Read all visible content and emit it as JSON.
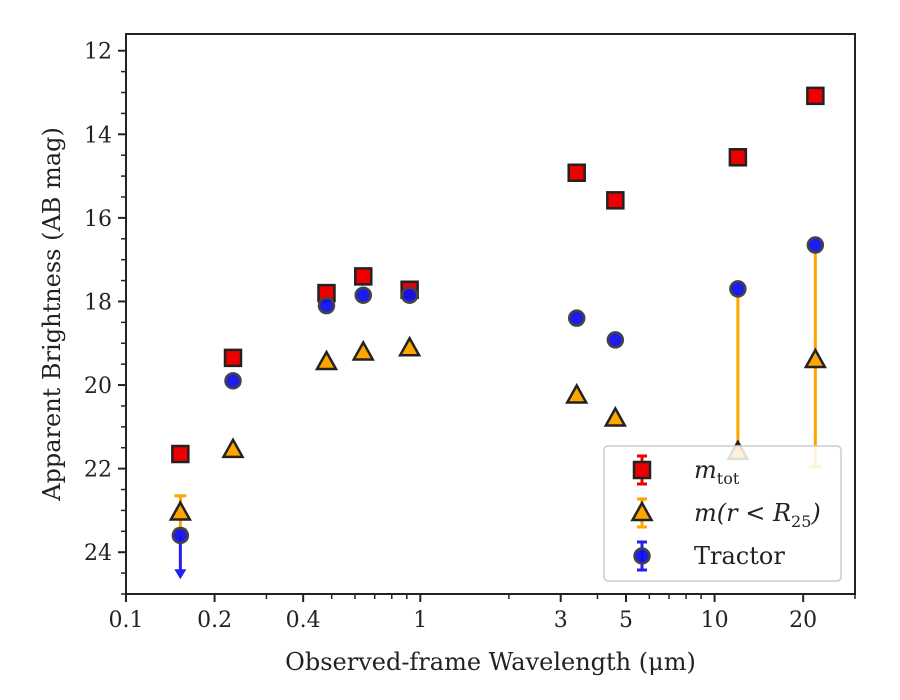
{
  "chart_data": {
    "type": "scatter",
    "xlabel": "Observed-frame Wavelength (μm)",
    "ylabel": "Apparent Brightness (AB mag)",
    "xscale": "log",
    "xlim": [
      0.1,
      30
    ],
    "ylim": [
      25,
      11.6
    ],
    "y_inverted": true,
    "grid": false,
    "legend_position": "lower-right",
    "x_ticks": [
      {
        "value": 0.1,
        "label": "0.1"
      },
      {
        "value": 0.2,
        "label": "0.2"
      },
      {
        "value": 0.4,
        "label": "0.4"
      },
      {
        "value": 1,
        "label": "1"
      },
      {
        "value": 3,
        "label": "3"
      },
      {
        "value": 5,
        "label": "5"
      },
      {
        "value": 10,
        "label": "10"
      },
      {
        "value": 20,
        "label": "20"
      }
    ],
    "y_ticks": [
      {
        "value": 12,
        "label": "12"
      },
      {
        "value": 14,
        "label": "14"
      },
      {
        "value": 16,
        "label": "16"
      },
      {
        "value": 18,
        "label": "18"
      },
      {
        "value": 20,
        "label": "20"
      },
      {
        "value": 22,
        "label": "22"
      },
      {
        "value": 24,
        "label": "24"
      }
    ],
    "series": [
      {
        "name": "m_tot",
        "marker": "square",
        "fill": "#ee0000",
        "error_color": "#ee0000",
        "points": [
          {
            "x": 0.153,
            "y": 21.65
          },
          {
            "x": 0.231,
            "y": 19.35
          },
          {
            "x": 0.48,
            "y": 17.8
          },
          {
            "x": 0.64,
            "y": 17.4
          },
          {
            "x": 0.92,
            "y": 17.72
          },
          {
            "x": 3.4,
            "y": 14.92
          },
          {
            "x": 4.6,
            "y": 15.58
          },
          {
            "x": 12.0,
            "y": 14.55
          },
          {
            "x": 22.0,
            "y": 13.08
          }
        ]
      },
      {
        "name": "m(r < R25)",
        "marker": "triangle",
        "fill": "#ffa500",
        "error_color": "#ffa500",
        "points": [
          {
            "x": 0.153,
            "y": 23.05,
            "err": 0.4
          },
          {
            "x": 0.231,
            "y": 21.55
          },
          {
            "x": 0.48,
            "y": 19.45
          },
          {
            "x": 0.64,
            "y": 19.22
          },
          {
            "x": 0.92,
            "y": 19.12
          },
          {
            "x": 3.4,
            "y": 20.25
          },
          {
            "x": 4.6,
            "y": 20.8
          },
          {
            "x": 12.0,
            "y": 21.6,
            "err_high": 17.8
          },
          {
            "x": 22.0,
            "y": 19.4,
            "err_high": 16.8,
            "err_low": 21.95
          }
        ]
      },
      {
        "name": "Tractor",
        "marker": "circle",
        "fill": "#1010ee",
        "error_color": "#2222ee",
        "points": [
          {
            "x": 0.153,
            "y": 23.6,
            "upper_limit": true
          },
          {
            "x": 0.231,
            "y": 19.9
          },
          {
            "x": 0.48,
            "y": 18.1
          },
          {
            "x": 0.64,
            "y": 17.85
          },
          {
            "x": 0.92,
            "y": 17.85
          },
          {
            "x": 3.4,
            "y": 18.4
          },
          {
            "x": 4.6,
            "y": 18.92
          },
          {
            "x": 12.0,
            "y": 17.7
          },
          {
            "x": 22.0,
            "y": 16.65
          }
        ]
      }
    ],
    "legend": [
      {
        "main": "m",
        "sub": "tot",
        "rest": ""
      },
      {
        "main": "m(r < R",
        "sub": "25",
        "rest": ")"
      },
      {
        "main": "Tractor",
        "sub": "",
        "rest": ""
      }
    ]
  }
}
